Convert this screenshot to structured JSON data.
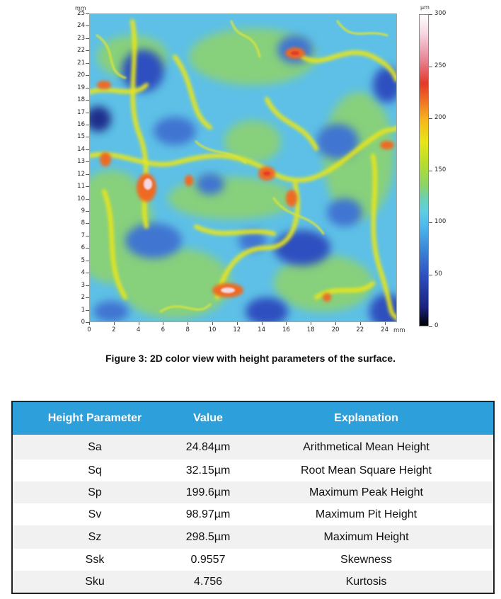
{
  "figure": {
    "y_unit": "mm",
    "x_unit": "mm",
    "colorbar_unit": "µm",
    "y_ticks": [
      "0",
      "1",
      "2",
      "3",
      "4",
      "5",
      "6",
      "7",
      "8",
      "9",
      "10",
      "11",
      "12",
      "13",
      "14",
      "15",
      "16",
      "17",
      "18",
      "19",
      "20",
      "21",
      "22",
      "23",
      "24",
      "25"
    ],
    "x_ticks": [
      "0",
      "2",
      "4",
      "6",
      "8",
      "10",
      "12",
      "14",
      "16",
      "18",
      "20",
      "22",
      "24"
    ],
    "colorbar_ticks": [
      "0",
      "50",
      "100",
      "150",
      "200",
      "250",
      "300"
    ],
    "caption": "Figure 3: 2D color view with height parameters of the surface.",
    "colors": {
      "high_red": "#e33a2a",
      "mid_yellow": "#e6e61a",
      "mid_green": "#8ad46a",
      "base_cyan": "#5fbfe6",
      "low_blue": "#2f4fbf"
    }
  },
  "table": {
    "headers": [
      "Height Parameter",
      "Value",
      "Explanation"
    ],
    "rows": [
      [
        "Sa",
        "24.84µm",
        "Arithmetical Mean Height"
      ],
      [
        "Sq",
        "32.15µm",
        "Root Mean Square Height"
      ],
      [
        "Sp",
        "199.6µm",
        "Maximum Peak Height"
      ],
      [
        "Sv",
        "98.97µm",
        "Maximum Pit Height"
      ],
      [
        "Sz",
        "298.5µm",
        "Maximum Height"
      ],
      [
        "Ssk",
        "0.9557",
        "Skewness"
      ],
      [
        "Sku",
        "4.756",
        "Kurtosis"
      ]
    ],
    "header_color": "#2da0dc"
  }
}
